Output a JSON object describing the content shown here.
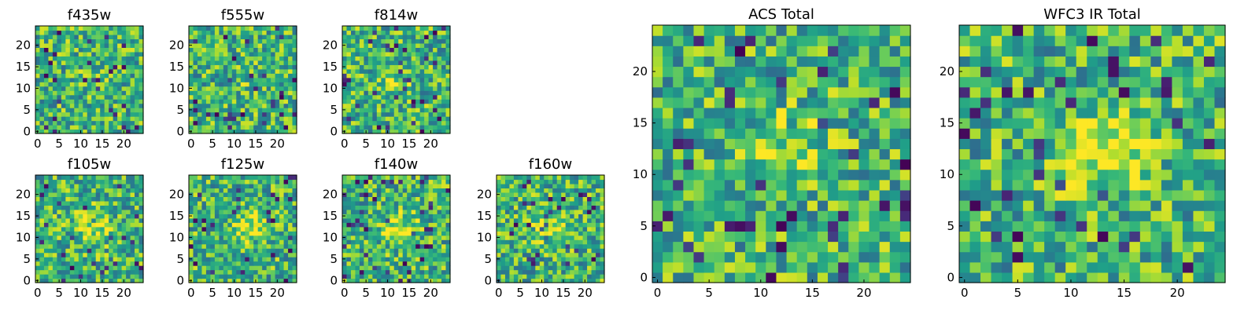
{
  "chart_data": [
    {
      "type": "heatmap",
      "title": "f435w",
      "colormap": "viridis",
      "grid_size": 25,
      "xlim": [
        0,
        24
      ],
      "ylim": [
        0,
        24
      ],
      "xticks": [
        0,
        5,
        10,
        15,
        20
      ],
      "yticks": [
        0,
        5,
        10,
        15,
        20
      ],
      "central_bump": 0.05
    },
    {
      "type": "heatmap",
      "title": "f555w",
      "colormap": "viridis",
      "grid_size": 25,
      "xlim": [
        0,
        24
      ],
      "ylim": [
        0,
        24
      ],
      "xticks": [
        0,
        5,
        10,
        15,
        20
      ],
      "yticks": [
        0,
        5,
        10,
        15,
        20
      ],
      "central_bump": 0.05
    },
    {
      "type": "heatmap",
      "title": "f814w",
      "colormap": "viridis",
      "grid_size": 25,
      "xlim": [
        0,
        24
      ],
      "ylim": [
        0,
        24
      ],
      "xticks": [
        0,
        5,
        10,
        15,
        20
      ],
      "yticks": [
        0,
        5,
        10,
        15,
        20
      ],
      "central_bump": 0.15
    },
    {
      "type": "heatmap",
      "title": "f105w",
      "colormap": "viridis",
      "grid_size": 25,
      "xlim": [
        0,
        24
      ],
      "ylim": [
        0,
        24
      ],
      "xticks": [
        0,
        5,
        10,
        15,
        20
      ],
      "yticks": [
        0,
        5,
        10,
        15,
        20
      ],
      "central_bump": 0.3
    },
    {
      "type": "heatmap",
      "title": "f125w",
      "colormap": "viridis",
      "grid_size": 25,
      "xlim": [
        0,
        24
      ],
      "ylim": [
        0,
        24
      ],
      "xticks": [
        0,
        5,
        10,
        15,
        20
      ],
      "yticks": [
        0,
        5,
        10,
        15,
        20
      ],
      "central_bump": 0.3
    },
    {
      "type": "heatmap",
      "title": "f140w",
      "colormap": "viridis",
      "grid_size": 25,
      "xlim": [
        0,
        24
      ],
      "ylim": [
        0,
        24
      ],
      "xticks": [
        0,
        5,
        10,
        15,
        20
      ],
      "yticks": [
        0,
        5,
        10,
        15,
        20
      ],
      "central_bump": 0.3
    },
    {
      "type": "heatmap",
      "title": "f160w",
      "colormap": "viridis",
      "grid_size": 25,
      "xlim": [
        0,
        24
      ],
      "ylim": [
        0,
        24
      ],
      "xticks": [
        0,
        5,
        10,
        15,
        20
      ],
      "yticks": [
        0,
        5,
        10,
        15,
        20
      ],
      "central_bump": 0.3
    },
    {
      "type": "heatmap",
      "title": "ACS Total",
      "colormap": "viridis",
      "grid_size": 25,
      "xlim": [
        0,
        24
      ],
      "ylim": [
        0,
        24
      ],
      "xticks": [
        0,
        5,
        10,
        15,
        20
      ],
      "yticks": [
        0,
        5,
        10,
        15,
        20
      ],
      "central_bump": 0.2
    },
    {
      "type": "heatmap",
      "title": "WFC3 IR Total",
      "colormap": "viridis",
      "grid_size": 25,
      "xlim": [
        0,
        24
      ],
      "ylim": [
        0,
        24
      ],
      "xticks": [
        0,
        5,
        10,
        15,
        20
      ],
      "yticks": [
        0,
        5,
        10,
        15,
        20
      ],
      "central_bump": 0.4
    }
  ]
}
